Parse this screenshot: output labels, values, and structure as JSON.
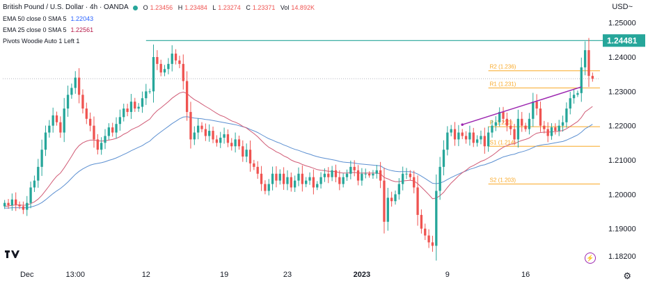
{
  "header": {
    "symbol_title": "British Pound / U.S. Dollar · 4h · OANDA",
    "ohlc": [
      {
        "label": "O",
        "value": "1.23456"
      },
      {
        "label": "H",
        "value": "1.23484"
      },
      {
        "label": "L",
        "value": "1.23274"
      },
      {
        "label": "C",
        "value": "1.23371"
      },
      {
        "label": "Vol",
        "value": "14.892K"
      }
    ],
    "indicators": [
      {
        "label": "EMA 50 close 0 SMA 5",
        "value": "1.22043",
        "color": "#2962ff"
      },
      {
        "label": "EMA 25 close 0 SMA 5",
        "value": "1.22561",
        "color": "#b71c4a"
      },
      {
        "label": "Pivots Woodie Auto 1 Left 1",
        "value": ""
      }
    ],
    "currency": "USD~"
  },
  "colors": {
    "up": "#26a69a",
    "down": "#ef5350",
    "ema50": "#5b8fd1",
    "ema25": "#d05a75",
    "resistance": "#26a69a",
    "trendline": "#9c27b0",
    "pivot": "#f9a825"
  },
  "chart_data": {
    "type": "candlestick",
    "title": "British Pound / U.S. Dollar · 4h · OANDA",
    "ylim": [
      1.18,
      1.255
    ],
    "y_ticks": [
      "1.25000",
      "1.24000",
      "1.23000",
      "1.22000",
      "1.21000",
      "1.20000",
      "1.19000",
      "1.18200"
    ],
    "y_tick_values": [
      1.25,
      1.24,
      1.23,
      1.22,
      1.21,
      1.2,
      1.19,
      1.182
    ],
    "x_ticks": [
      "Dec",
      "13:00",
      "12",
      "19",
      "23",
      "2023",
      "9",
      "16"
    ],
    "x_tick_index": [
      6,
      19,
      38,
      59,
      76,
      96,
      119,
      140
    ],
    "last_price": "1.24481",
    "last_price_value": 1.24481,
    "resistance_level": 1.2448,
    "trendline": {
      "from": {
        "index": 123,
        "price": 1.2203
      },
      "to": {
        "index": 155,
        "price": 1.2313
      }
    },
    "pivots": [
      {
        "label": "R2 (1.236)",
        "value": 1.236
      },
      {
        "label": "R1 (1.231)",
        "value": 1.231
      },
      {
        "label": "P (1.220)",
        "value": 1.2197
      },
      {
        "label": "S1 (1.214)",
        "value": 1.214
      },
      {
        "label": "S2 (1.203)",
        "value": 1.203
      }
    ],
    "closes": [
      1.1975,
      1.1968,
      1.1985,
      1.197,
      1.1965,
      1.1955,
      1.1975,
      1.202,
      1.204,
      1.208,
      1.213,
      1.218,
      1.22,
      1.223,
      1.221,
      1.218,
      1.225,
      1.229,
      1.231,
      1.234,
      1.229,
      1.225,
      1.222,
      1.22,
      1.216,
      1.213,
      1.215,
      1.217,
      1.2195,
      1.218,
      1.2205,
      1.2225,
      1.225,
      1.224,
      1.227,
      1.225,
      1.2255,
      1.228,
      1.23,
      1.23,
      1.24,
      1.238,
      1.2355,
      1.2365,
      1.238,
      1.241,
      1.239,
      1.238,
      1.233,
      1.224,
      1.216,
      1.218,
      1.22,
      1.219,
      1.217,
      1.2185,
      1.216,
      1.215,
      1.2165,
      1.2175,
      1.215,
      1.214,
      1.216,
      1.214,
      1.211,
      1.213,
      1.209,
      1.208,
      1.206,
      1.203,
      1.201,
      1.203,
      1.206,
      1.204,
      1.206,
      1.203,
      1.205,
      1.202,
      1.204,
      1.206,
      1.203,
      1.204,
      1.205,
      1.202,
      1.203,
      1.205,
      1.206,
      1.205,
      1.207,
      1.205,
      1.203,
      1.205,
      1.206,
      1.208,
      1.207,
      1.204,
      1.206,
      1.206,
      1.2055,
      1.206,
      1.207,
      1.204,
      1.192,
      1.199,
      1.198,
      1.2,
      1.203,
      1.206,
      1.206,
      1.205,
      1.202,
      1.194,
      1.19,
      1.188,
      1.186,
      1.185,
      1.201,
      1.208,
      1.213,
      1.218,
      1.219,
      1.216,
      1.218,
      1.217,
      1.216,
      1.218,
      1.215,
      1.216,
      1.217,
      1.214,
      1.218,
      1.22,
      1.221,
      1.224,
      1.222,
      1.22,
      1.219,
      1.216,
      1.222,
      1.22,
      1.219,
      1.222,
      1.227,
      1.225,
      1.22,
      1.219,
      1.217,
      1.2195,
      1.2185,
      1.22,
      1.221,
      1.225,
      1.228,
      1.229,
      1.2295,
      1.237,
      1.242,
      1.2345,
      1.2337
    ],
    "ema25": [
      1.1965,
      1.1966,
      1.1968,
      1.1969,
      1.1969,
      1.1968,
      1.1969,
      1.1973,
      1.1978,
      1.1986,
      1.1997,
      1.2011,
      1.2025,
      1.204,
      1.2053,
      1.2062,
      1.2077,
      1.2094,
      1.2111,
      1.2129,
      1.2142,
      1.215,
      1.2155,
      1.2158,
      1.2158,
      1.2156,
      1.2155,
      1.2156,
      1.2158,
      1.216,
      1.2163,
      1.2168,
      1.2175,
      1.218,
      1.2188,
      1.2193,
      1.2198,
      1.2205,
      1.2212,
      1.2219,
      1.2233,
      1.2244,
      1.2252,
      1.2261,
      1.227,
      1.228,
      1.2288,
      1.2295,
      1.2298,
      1.2294,
      1.2284,
      1.2276,
      1.227,
      1.2263,
      1.2256,
      1.225,
      1.2243,
      1.2236,
      1.223,
      1.2226,
      1.222,
      1.2214,
      1.221,
      1.2205,
      1.2198,
      1.2193,
      1.2185,
      1.2177,
      1.2168,
      1.2157,
      1.2146,
      1.2137,
      1.2131,
      1.2124,
      1.2119,
      1.2112,
      1.2107,
      1.21,
      1.2095,
      1.2092,
      1.2087,
      1.2083,
      1.208,
      1.2076,
      1.2072,
      1.207,
      1.2069,
      1.2067,
      1.2067,
      1.2066,
      1.2063,
      1.2062,
      1.2062,
      1.2063,
      1.2064,
      1.2062,
      1.2062,
      1.2062,
      1.2062,
      1.2062,
      1.2062,
      1.206,
      1.2049,
      1.2045,
      1.204,
      1.2037,
      1.2037,
      1.2039,
      1.204,
      1.2041,
      1.2039,
      1.2031,
      1.2021,
      1.201,
      1.1999,
      1.1987,
      1.1989,
      1.1996,
      1.2006,
      1.202,
      1.2033,
      1.2043,
      1.2054,
      1.2063,
      1.207,
      1.2079,
      1.2084,
      1.209,
      1.2096,
      1.21,
      1.2106,
      1.2113,
      1.2121,
      1.213,
      1.2137,
      1.2142,
      1.2146,
      1.2147,
      1.2153,
      1.2157,
      1.216,
      1.2164,
      1.2172,
      1.2178,
      1.218,
      1.2181,
      1.2181,
      1.2182,
      1.2183,
      1.2184,
      1.2186,
      1.2191,
      1.2198,
      1.2205,
      1.2212,
      1.2224,
      1.224,
      1.2248,
      1.2256
    ],
    "ema50": [
      1.196,
      1.196,
      1.1961,
      1.1961,
      1.1961,
      1.1961,
      1.1961,
      1.1963,
      1.1966,
      1.197,
      1.1976,
      1.1984,
      1.1993,
      1.2002,
      1.201,
      1.2017,
      1.2026,
      1.2036,
      1.2047,
      1.2058,
      1.2067,
      1.2074,
      1.208,
      1.2085,
      1.2088,
      1.209,
      1.2092,
      1.2095,
      1.2099,
      1.2102,
      1.2106,
      1.2111,
      1.2116,
      1.2121,
      1.2127,
      1.2132,
      1.2137,
      1.2142,
      1.2149,
      1.2155,
      1.2165,
      1.2174,
      1.2182,
      1.219,
      1.2198,
      1.2206,
      1.2213,
      1.222,
      1.2225,
      1.2226,
      1.2224,
      1.2222,
      1.2221,
      1.222,
      1.2218,
      1.2217,
      1.2215,
      1.2213,
      1.2211,
      1.2209,
      1.2207,
      1.2205,
      1.2203,
      1.22,
      1.2197,
      1.2194,
      1.2189,
      1.2185,
      1.218,
      1.2174,
      1.2168,
      1.2162,
      1.2158,
      1.2153,
      1.2149,
      1.2144,
      1.214,
      1.2135,
      1.2131,
      1.2128,
      1.2124,
      1.212,
      1.2117,
      1.2113,
      1.211,
      1.2107,
      1.2105,
      1.2103,
      1.2101,
      1.2099,
      1.2096,
      1.2094,
      1.2093,
      1.2092,
      1.2091,
      1.2089,
      1.2088,
      1.2087,
      1.2086,
      1.2085,
      1.2084,
      1.2083,
      1.2076,
      1.2072,
      1.2069,
      1.2067,
      1.2066,
      1.2066,
      1.2066,
      1.2066,
      1.2064,
      1.2059,
      1.2053,
      1.2046,
      1.2039,
      1.2032,
      1.2031,
      1.2033,
      1.2037,
      1.2043,
      1.2049,
      1.2054,
      1.2059,
      1.2064,
      1.2068,
      1.2073,
      1.2076,
      1.208,
      1.2084,
      1.2086,
      1.209,
      1.2094,
      1.2099,
      1.2104,
      1.2109,
      1.2112,
      1.2115,
      1.2117,
      1.2121,
      1.2124,
      1.2127,
      1.2131,
      1.2136,
      1.2141,
      1.2143,
      1.2145,
      1.2146,
      1.2148,
      1.215,
      1.2152,
      1.2154,
      1.2158,
      1.2163,
      1.2168,
      1.2173,
      1.2181,
      1.2191,
      1.2197,
      1.2204
    ]
  }
}
